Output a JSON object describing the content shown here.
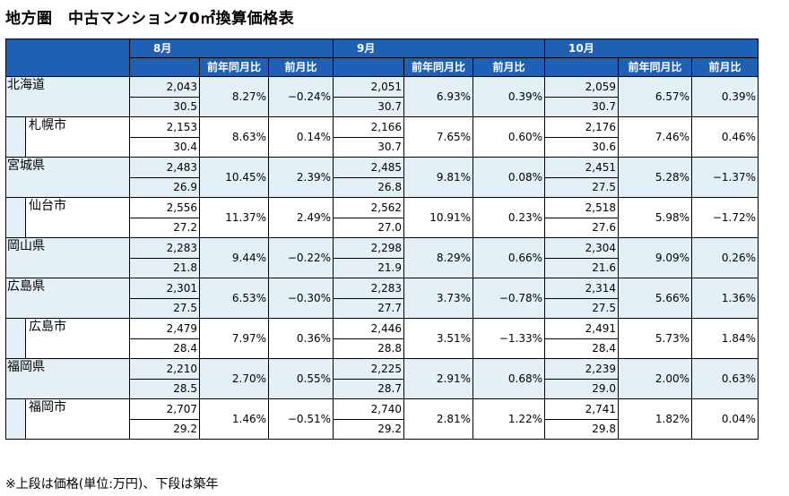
{
  "title": "地方圏　中古マンション70㎡換算価格表",
  "months": [
    "8月",
    "9月",
    "10月"
  ],
  "sub_headers": {
    "yoy": "前年同月比",
    "mom": "前月比"
  },
  "rows": [
    {
      "name": "北海道",
      "level": "pref",
      "m": [
        {
          "price": "2,043",
          "age": "30.5",
          "yoy": "8.27%",
          "mom": "−0.24%"
        },
        {
          "price": "2,051",
          "age": "30.7",
          "yoy": "6.93%",
          "mom": "0.39%"
        },
        {
          "price": "2,059",
          "age": "30.7",
          "yoy": "6.57%",
          "mom": "0.39%"
        }
      ]
    },
    {
      "name": "札幌市",
      "level": "city",
      "m": [
        {
          "price": "2,153",
          "age": "30.4",
          "yoy": "8.63%",
          "mom": "0.14%"
        },
        {
          "price": "2,166",
          "age": "30.7",
          "yoy": "7.65%",
          "mom": "0.60%"
        },
        {
          "price": "2,176",
          "age": "30.6",
          "yoy": "7.46%",
          "mom": "0.46%"
        }
      ]
    },
    {
      "name": "宮城県",
      "level": "pref",
      "m": [
        {
          "price": "2,483",
          "age": "26.9",
          "yoy": "10.45%",
          "mom": "2.39%"
        },
        {
          "price": "2,485",
          "age": "26.8",
          "yoy": "9.81%",
          "mom": "0.08%"
        },
        {
          "price": "2,451",
          "age": "27.5",
          "yoy": "5.28%",
          "mom": "−1.37%"
        }
      ]
    },
    {
      "name": "仙台市",
      "level": "city",
      "m": [
        {
          "price": "2,556",
          "age": "27.2",
          "yoy": "11.37%",
          "mom": "2.49%"
        },
        {
          "price": "2,562",
          "age": "27.0",
          "yoy": "10.91%",
          "mom": "0.23%"
        },
        {
          "price": "2,518",
          "age": "27.6",
          "yoy": "5.98%",
          "mom": "−1.72%"
        }
      ]
    },
    {
      "name": "岡山県",
      "level": "pref",
      "m": [
        {
          "price": "2,283",
          "age": "21.8",
          "yoy": "9.44%",
          "mom": "−0.22%"
        },
        {
          "price": "2,298",
          "age": "21.9",
          "yoy": "8.29%",
          "mom": "0.66%"
        },
        {
          "price": "2,304",
          "age": "21.6",
          "yoy": "9.09%",
          "mom": "0.26%"
        }
      ]
    },
    {
      "name": "広島県",
      "level": "pref",
      "m": [
        {
          "price": "2,301",
          "age": "27.5",
          "yoy": "6.53%",
          "mom": "−0.30%"
        },
        {
          "price": "2,283",
          "age": "27.7",
          "yoy": "3.73%",
          "mom": "−0.78%"
        },
        {
          "price": "2,314",
          "age": "27.5",
          "yoy": "5.66%",
          "mom": "1.36%"
        }
      ]
    },
    {
      "name": "広島市",
      "level": "city",
      "m": [
        {
          "price": "2,479",
          "age": "28.4",
          "yoy": "7.97%",
          "mom": "0.36%"
        },
        {
          "price": "2,446",
          "age": "28.8",
          "yoy": "3.51%",
          "mom": "−1.33%"
        },
        {
          "price": "2,491",
          "age": "28.4",
          "yoy": "5.73%",
          "mom": "1.84%"
        }
      ]
    },
    {
      "name": "福岡県",
      "level": "pref",
      "m": [
        {
          "price": "2,210",
          "age": "28.5",
          "yoy": "2.70%",
          "mom": "0.55%"
        },
        {
          "price": "2,225",
          "age": "28.7",
          "yoy": "2.91%",
          "mom": "0.68%"
        },
        {
          "price": "2,239",
          "age": "29.0",
          "yoy": "2.00%",
          "mom": "0.63%"
        }
      ]
    },
    {
      "name": "福岡市",
      "level": "city",
      "m": [
        {
          "price": "2,707",
          "age": "29.2",
          "yoy": "1.46%",
          "mom": "−0.51%"
        },
        {
          "price": "2,740",
          "age": "29.2",
          "yoy": "2.81%",
          "mom": "1.22%"
        },
        {
          "price": "2,741",
          "age": "29.8",
          "yoy": "1.82%",
          "mom": "0.04%"
        }
      ]
    }
  ],
  "footnote": "※上段は価格(単位:万円)、下段は築年"
}
